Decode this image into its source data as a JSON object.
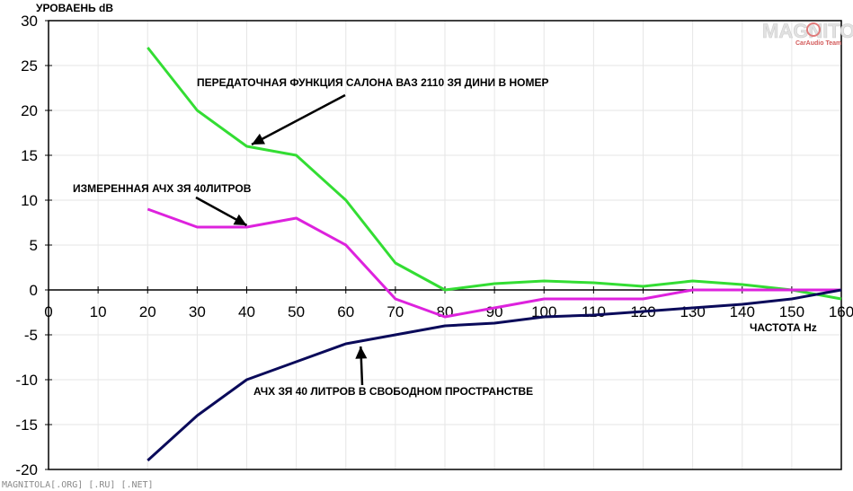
{
  "chart_data": {
    "type": "line",
    "ylabel": "УРОВАЕНЬ dB",
    "xlabel": "ЧАСТОТА Hz",
    "xlim": [
      0,
      160
    ],
    "ylim": [
      -20,
      30
    ],
    "x_ticks": [
      0,
      10,
      20,
      30,
      40,
      50,
      60,
      70,
      80,
      90,
      100,
      110,
      120,
      130,
      140,
      150,
      160
    ],
    "y_ticks": [
      30,
      25,
      20,
      15,
      10,
      5,
      0,
      -5,
      -10,
      -15,
      -20
    ],
    "grid": true,
    "series": [
      {
        "color": "#33dd33",
        "x": [
          20,
          30,
          40,
          50,
          60,
          70,
          80,
          90,
          100,
          110,
          120,
          130,
          140,
          150,
          160
        ],
        "y": [
          27,
          20,
          16,
          15,
          10,
          3,
          0,
          0.7,
          1,
          0.8,
          0.4,
          1,
          0.6,
          0,
          -1
        ]
      },
      {
        "color": "#dd22dd",
        "x": [
          20,
          30,
          40,
          50,
          60,
          70,
          80,
          90,
          100,
          110,
          120,
          130,
          140,
          150,
          160
        ],
        "y": [
          9,
          7,
          7,
          8,
          5,
          -1,
          -3,
          -2,
          -1,
          -1,
          -1,
          0,
          0,
          0,
          0
        ]
      },
      {
        "color": "#0a0a5a",
        "x": [
          20,
          30,
          40,
          50,
          60,
          70,
          80,
          90,
          100,
          110,
          120,
          130,
          140,
          150,
          160
        ],
        "y": [
          -19,
          -14,
          -10,
          -8,
          -6,
          -5,
          -4,
          -3.7,
          -3,
          -2.8,
          -2.4,
          -2,
          -1.6,
          -1,
          0
        ]
      }
    ],
    "annotations": [
      {
        "text": "ПЕРЕДАТОЧНАЯ ФУНКЦИЯ САЛОНА ВАЗ 2110 ЗЯ ДИНИ В НОМЕР",
        "target_x": 41,
        "target_y": 16
      },
      {
        "text": "ИЗМЕРЕННАЯ АЧХ ЗЯ 40ЛИТРОВ",
        "target_x": 40,
        "target_y": 7
      },
      {
        "text": "АЧХ ЗЯ 40 ЛИТРОВ В СВОБОДНОМ ПРОСТРАНСТВЕ",
        "target_x": 63,
        "target_y": -6
      }
    ]
  },
  "watermark": {
    "text": "MAGNITOLA",
    "subtext": "CarAudio Team"
  },
  "footer": "MAGNITOLA[.ORG] [.RU] [.NET]"
}
